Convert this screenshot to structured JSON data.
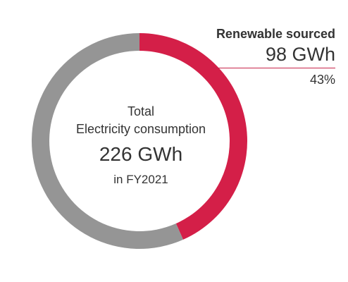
{
  "chart_data": {
    "type": "pie",
    "variant": "donut",
    "slices": [
      {
        "name": "Renewable sourced",
        "value": 98,
        "percent": 43,
        "color": "#d41f48"
      },
      {
        "name": "",
        "value": 128,
        "percent": 57,
        "color": "#959595"
      }
    ],
    "center": {
      "line1": "Total",
      "line2": "Electricity consumption",
      "value": "226 GWh",
      "period": "in FY2021"
    },
    "callout": {
      "title": "Renewable sourced",
      "value": "98 GWh",
      "percent": "43%",
      "line_color": "#c8234a"
    }
  }
}
